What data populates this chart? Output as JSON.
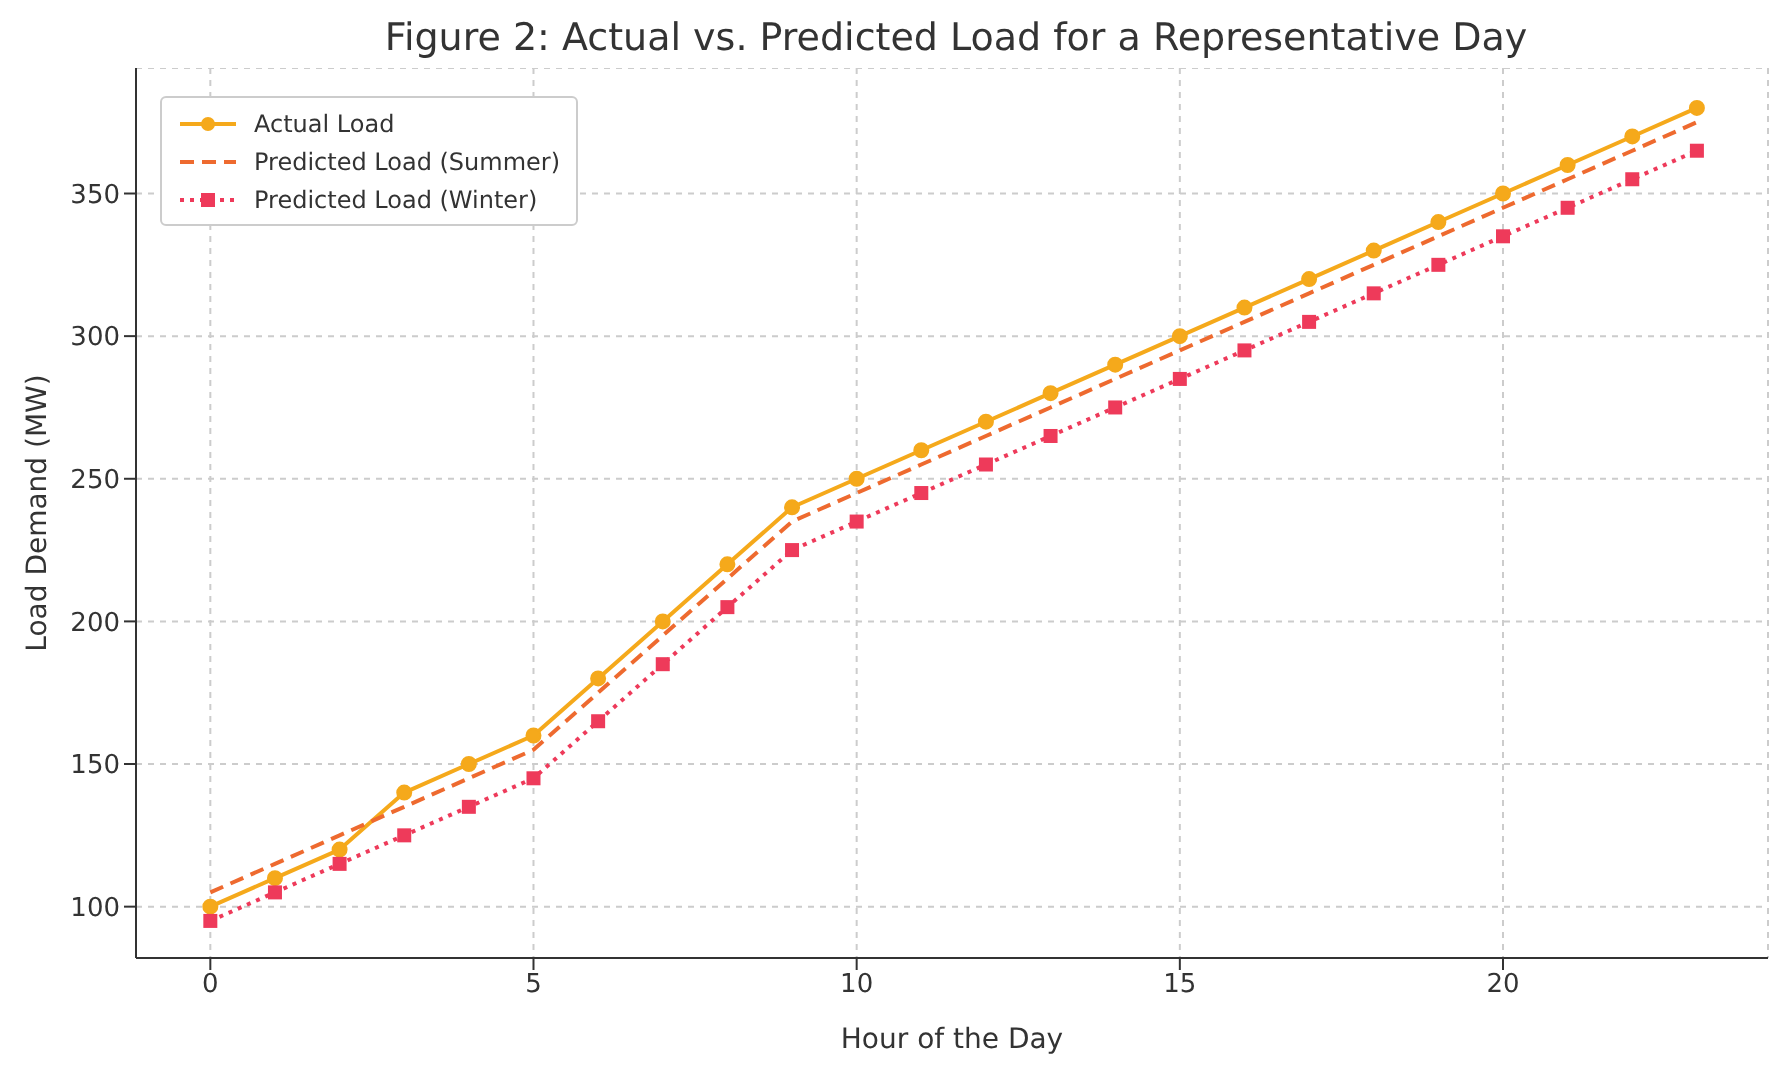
{
  "chart_data": {
    "type": "line",
    "title": "Figure 2: Actual vs. Predicted Load for a Representative Day",
    "xlabel": "Hour of the Day",
    "ylabel": "Load Demand (MW)",
    "x": [
      0,
      1,
      2,
      3,
      4,
      5,
      6,
      7,
      8,
      9,
      10,
      11,
      12,
      13,
      14,
      15,
      16,
      17,
      18,
      19,
      20,
      21,
      22,
      23
    ],
    "series": [
      {
        "name": "Actual Load",
        "color": "#f5a91b",
        "marker": "circle",
        "line_style": "solid",
        "values": [
          100,
          110,
          120,
          140,
          150,
          160,
          180,
          200,
          220,
          240,
          250,
          260,
          270,
          280,
          290,
          300,
          310,
          320,
          330,
          340,
          350,
          360,
          370,
          380
        ]
      },
      {
        "name": "Predicted Load (Summer)",
        "color": "#ee6a2f",
        "marker": "none",
        "line_style": "dashed",
        "values": [
          105,
          115,
          125,
          135,
          145,
          155,
          175,
          195,
          215,
          235,
          245,
          255,
          265,
          275,
          285,
          295,
          305,
          315,
          325,
          335,
          345,
          355,
          365,
          375
        ]
      },
      {
        "name": "Predicted Load (Winter)",
        "color": "#ee3a5a",
        "marker": "square",
        "line_style": "dotted",
        "values": [
          95,
          105,
          115,
          125,
          135,
          145,
          165,
          185,
          205,
          225,
          235,
          245,
          255,
          265,
          275,
          285,
          295,
          305,
          315,
          325,
          335,
          345,
          355,
          365
        ]
      }
    ],
    "xlim": [
      -1.15,
      24.1
    ],
    "xticks": [
      0,
      5,
      10,
      15,
      20
    ],
    "ylim": [
      82,
      394
    ],
    "yticks": [
      100,
      150,
      200,
      250,
      300,
      350
    ],
    "grid": true,
    "legend": "top left"
  }
}
